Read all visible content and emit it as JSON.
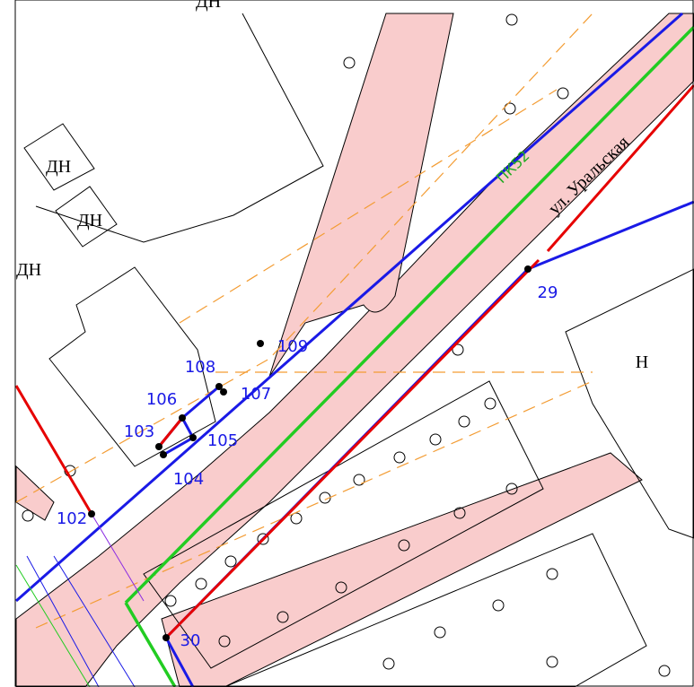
{
  "buildings": [
    {
      "label": "ДН"
    },
    {
      "label": "ДН"
    },
    {
      "label": "ДН"
    },
    {
      "label": "ДН"
    },
    {
      "label": "Н"
    }
  ],
  "street": {
    "name": "ул. Уральская"
  },
  "picket": {
    "label": "ПК52"
  },
  "points": [
    {
      "label": "102"
    },
    {
      "label": "103"
    },
    {
      "label": "104"
    },
    {
      "label": "105"
    },
    {
      "label": "106"
    },
    {
      "label": "107"
    },
    {
      "label": "108"
    },
    {
      "label": "109"
    },
    {
      "label": "29"
    },
    {
      "label": "30"
    }
  ]
}
